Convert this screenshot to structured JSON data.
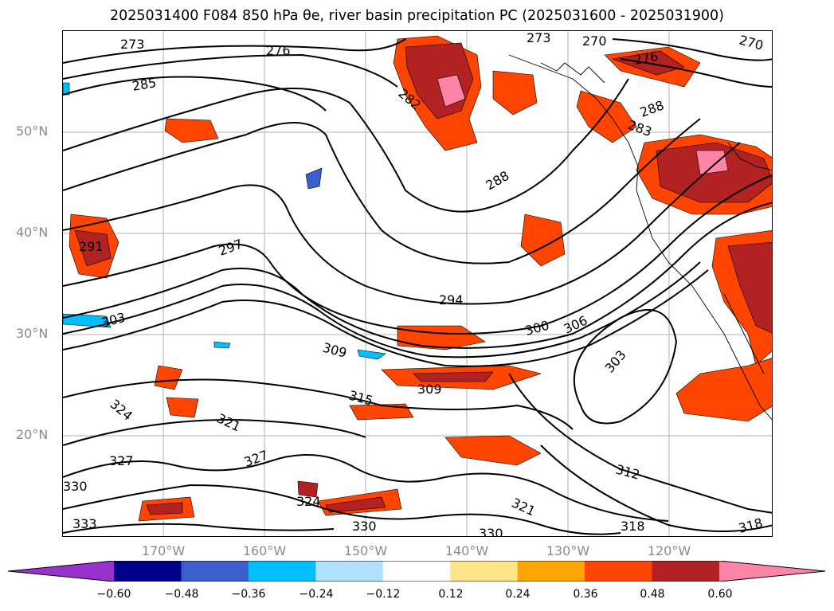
{
  "title": "2025031400 F084 850 hPa θe, river basin precipitation PC (2025031600 - 2025031900)",
  "lat_labels": [
    "50°N",
    "40°N",
    "30°N",
    "20°N"
  ],
  "lon_labels": [
    "170°W",
    "160°W",
    "150°W",
    "140°W",
    "130°W",
    "120°W"
  ],
  "contour_labels": [
    "273",
    "276",
    "285",
    "282",
    "288",
    "291",
    "297",
    "303",
    "294",
    "300",
    "306",
    "309",
    "303",
    "315",
    "309",
    "324",
    "321",
    "327",
    "330",
    "333",
    "330",
    "324",
    "321",
    "327",
    "312",
    "318",
    "318",
    "330",
    "273",
    "270",
    "270",
    "276",
    "283",
    "288"
  ],
  "colorbar": {
    "ticks": [
      "−0.60",
      "−0.48",
      "−0.36",
      "−0.24",
      "−0.12",
      "0.12",
      "0.24",
      "0.36",
      "0.48",
      "0.60"
    ],
    "colors": [
      "#9932cc",
      "#00008b",
      "#3a5fcd",
      "#00bfff",
      "#b0e2ff",
      "#ffffff",
      "#fde68a",
      "#ffa500",
      "#ff4500",
      "#b22222",
      "#ff85a8"
    ]
  }
}
